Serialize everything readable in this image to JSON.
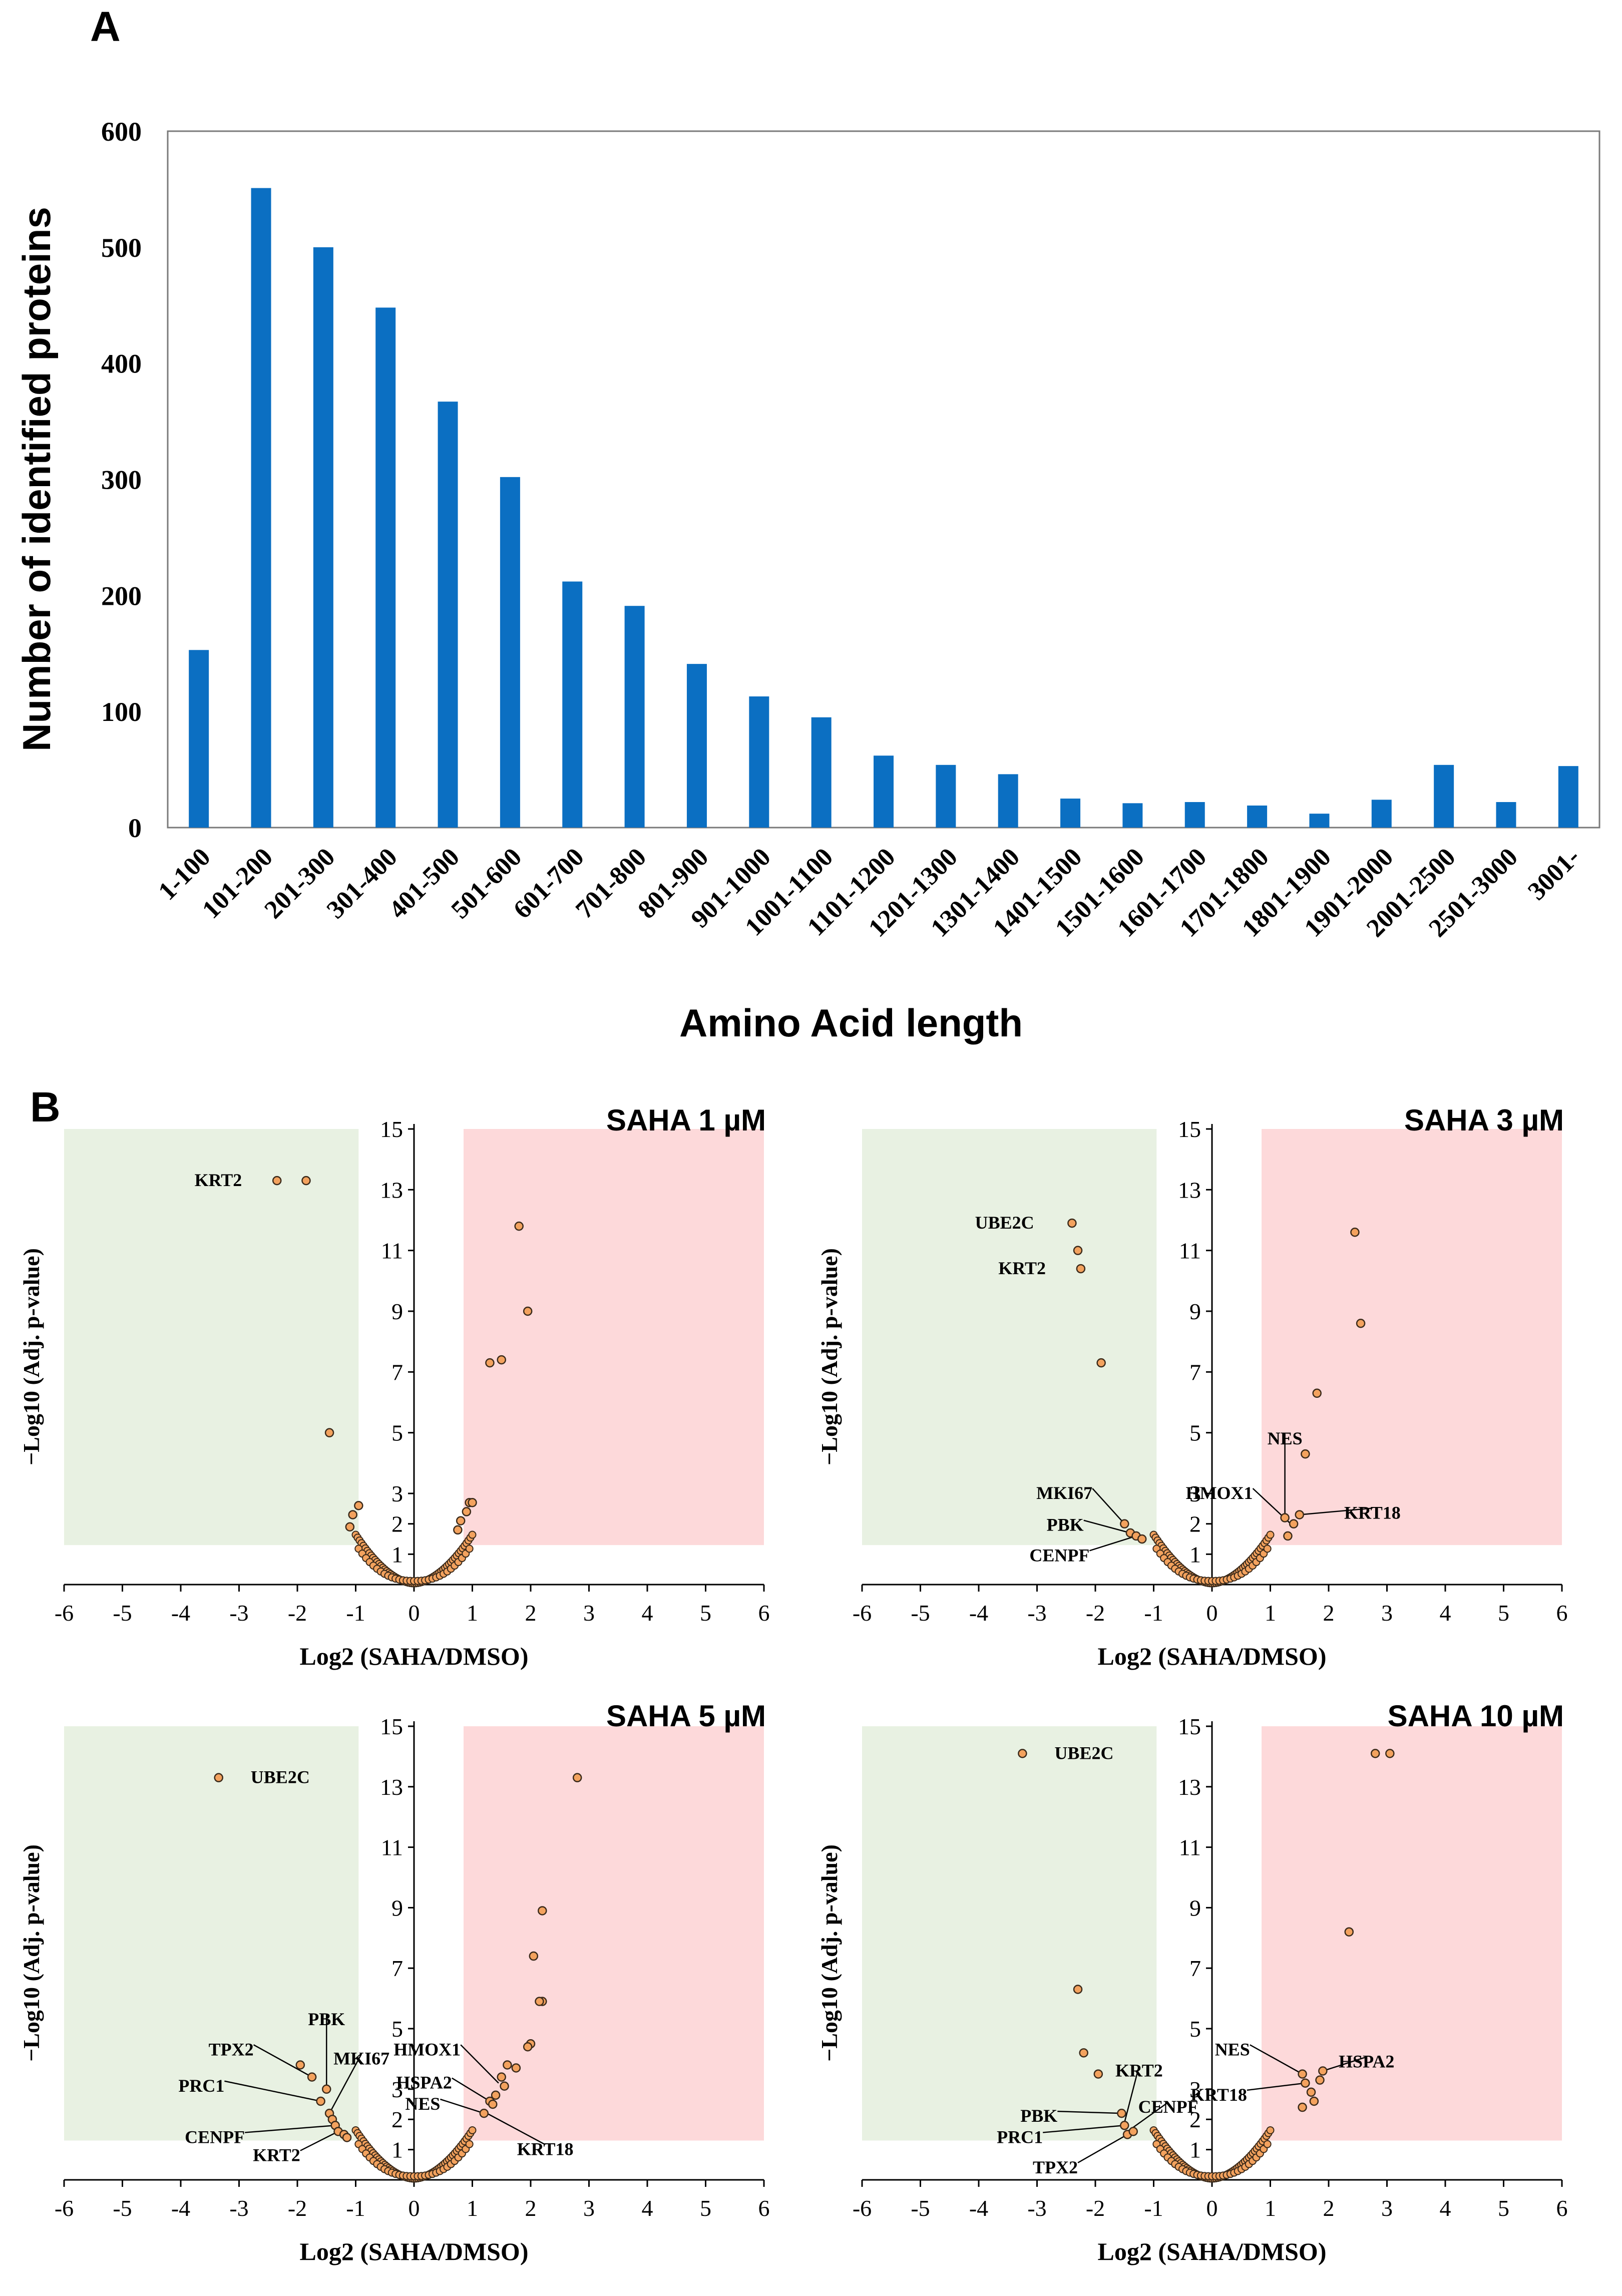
{
  "panel_a": {
    "letter": "A",
    "chart_data": {
      "type": "bar",
      "title": "",
      "xlabel": "Amino Acid length",
      "ylabel": "Number of identified proteins",
      "ylim": [
        0,
        600
      ],
      "yticks": [
        0,
        100,
        200,
        300,
        400,
        500,
        600
      ],
      "color": "#0b6fc2",
      "categories": [
        "1-100",
        "101-200",
        "201-300",
        "301-400",
        "401-500",
        "501-600",
        "601-700",
        "701-800",
        "801-900",
        "901-1000",
        "1001-1100",
        "1101-1200",
        "1201-1300",
        "1301-1400",
        "1401-1500",
        "1501-1600",
        "1601-1700",
        "1701-1800",
        "1801-1900",
        "1901-2000",
        "2001-2500",
        "2501-3000",
        "3001-"
      ],
      "values": [
        153,
        551,
        500,
        448,
        367,
        302,
        212,
        191,
        141,
        113,
        95,
        62,
        54,
        46,
        25,
        21,
        22,
        19,
        12,
        24,
        54,
        22,
        53
      ]
    }
  },
  "panel_b": {
    "letter": "B",
    "xlabel": "Log2 (SAHA/DMSO)",
    "ylabel": "−Log10 (Adj. p-value)",
    "xticks": [
      -6,
      -5,
      -4,
      -3,
      -2,
      -1,
      0,
      1,
      2,
      3,
      4,
      5,
      6
    ],
    "yticks": [
      1,
      2,
      3,
      5,
      7,
      9,
      11,
      13,
      15
    ],
    "down_color": "#e8f1e2",
    "up_color": "#fdd9da",
    "point_color": "#f3a25e",
    "point_edge": "#3b2a1a",
    "chart_data": [
      {
        "type": "scatter",
        "title": "SAHA   1 µM",
        "xlim": [
          -6,
          6
        ],
        "ylim": [
          0,
          15
        ],
        "shaded_down_x": [
          -6,
          -0.95
        ],
        "shaded_up_x": [
          0.85,
          6
        ],
        "shaded_y": [
          1.3,
          15
        ],
        "points": [
          [
            -1.85,
            13.3
          ],
          [
            -2.35,
            13.3
          ],
          [
            1.8,
            11.8
          ],
          [
            1.95,
            9.0
          ],
          [
            1.3,
            7.3
          ],
          [
            1.5,
            7.4
          ],
          [
            -1.45,
            5.0
          ],
          [
            -0.95,
            2.6
          ],
          [
            -1.05,
            2.3
          ],
          [
            -1.1,
            1.9
          ],
          [
            0.95,
            2.7
          ],
          [
            1.0,
            2.7
          ],
          [
            0.9,
            2.4
          ],
          [
            0.8,
            2.1
          ],
          [
            0.75,
            1.8
          ]
        ],
        "labels": [
          {
            "text": "KRT2",
            "x": -2.35,
            "y": 13.3,
            "tx": -2.95,
            "ty": 13.3,
            "leader": false
          }
        ]
      },
      {
        "type": "scatter",
        "title": "SAHA   3 µM",
        "xlim": [
          -6,
          6
        ],
        "ylim": [
          0,
          15
        ],
        "shaded_down_x": [
          -6,
          -0.95
        ],
        "shaded_up_x": [
          0.85,
          6
        ],
        "shaded_y": [
          1.3,
          15
        ],
        "points": [
          [
            -2.4,
            11.9
          ],
          [
            -2.3,
            11.0
          ],
          [
            -2.25,
            10.4
          ],
          [
            -1.9,
            7.3
          ],
          [
            2.45,
            11.6
          ],
          [
            2.55,
            8.6
          ],
          [
            1.8,
            6.3
          ],
          [
            1.6,
            4.3
          ],
          [
            1.25,
            2.2
          ],
          [
            1.5,
            2.3
          ],
          [
            1.4,
            2.0
          ],
          [
            1.3,
            1.6
          ],
          [
            -1.5,
            2.0
          ],
          [
            -1.4,
            1.7
          ],
          [
            -1.3,
            1.6
          ],
          [
            -1.2,
            1.5
          ]
        ],
        "labels": [
          {
            "text": "UBE2C",
            "x": -2.4,
            "y": 11.9,
            "tx": -3.05,
            "ty": 11.9,
            "leader": false
          },
          {
            "text": "KRT2",
            "x": -2.25,
            "y": 10.4,
            "tx": -2.85,
            "ty": 10.4,
            "leader": false
          },
          {
            "text": "MKI67",
            "x": -1.5,
            "y": 2.0,
            "tx": -2.05,
            "ty": 3.0,
            "leader": true
          },
          {
            "text": "PBK",
            "x": -1.4,
            "y": 1.7,
            "tx": -2.2,
            "ty": 1.95,
            "leader": true
          },
          {
            "text": "CENPF",
            "x": -1.3,
            "y": 1.6,
            "tx": -2.1,
            "ty": 0.95,
            "leader": true
          },
          {
            "text": "NES",
            "x": 1.25,
            "y": 2.2,
            "tx": 1.25,
            "ty": 4.8,
            "leader": true
          },
          {
            "text": "HMOX1",
            "x": 1.35,
            "y": 2.0,
            "tx": 0.7,
            "ty": 3.0,
            "leader": true
          },
          {
            "text": "KRT18",
            "x": 1.5,
            "y": 2.3,
            "tx": 2.75,
            "ty": 2.35,
            "leader": true
          }
        ]
      },
      {
        "type": "scatter",
        "title": "SAHA   5 µM",
        "xlim": [
          -6,
          6
        ],
        "ylim": [
          0,
          15
        ],
        "shaded_down_x": [
          -6,
          -0.95
        ],
        "shaded_up_x": [
          0.85,
          6
        ],
        "shaded_y": [
          1.3,
          15
        ],
        "points": [
          [
            -3.35,
            13.3
          ],
          [
            2.8,
            13.3
          ],
          [
            2.2,
            8.9
          ],
          [
            2.05,
            7.4
          ],
          [
            2.2,
            5.9
          ],
          [
            2.15,
            5.9
          ],
          [
            2.0,
            4.5
          ],
          [
            1.95,
            4.4
          ],
          [
            1.6,
            3.8
          ],
          [
            1.75,
            3.7
          ],
          [
            1.5,
            3.4
          ],
          [
            1.55,
            3.1
          ],
          [
            1.4,
            2.8
          ],
          [
            1.3,
            2.6
          ],
          [
            1.35,
            2.5
          ],
          [
            1.2,
            2.2
          ],
          [
            -1.95,
            3.8
          ],
          [
            -1.75,
            3.4
          ],
          [
            -1.6,
            2.6
          ],
          [
            -1.5,
            3.0
          ],
          [
            -1.45,
            2.2
          ],
          [
            -1.4,
            2.0
          ],
          [
            -1.35,
            1.8
          ],
          [
            -1.3,
            1.6
          ],
          [
            -1.2,
            1.5
          ],
          [
            -1.15,
            1.4
          ]
        ],
        "labels": [
          {
            "text": "UBE2C",
            "x": -3.35,
            "y": 13.3,
            "tx": -2.8,
            "ty": 13.3,
            "leader": false
          },
          {
            "text": "PBK",
            "x": -1.5,
            "y": 3.0,
            "tx": -1.5,
            "ty": 5.3,
            "leader": true
          },
          {
            "text": "TPX2",
            "x": -1.75,
            "y": 3.4,
            "tx": -2.75,
            "ty": 4.3,
            "leader": true
          },
          {
            "text": "MKI67",
            "x": -1.45,
            "y": 2.2,
            "tx": -0.9,
            "ty": 4.0,
            "leader": true
          },
          {
            "text": "PRC1",
            "x": -1.6,
            "y": 2.6,
            "tx": -3.25,
            "ty": 3.1,
            "leader": true
          },
          {
            "text": "CENPF",
            "x": -1.35,
            "y": 1.8,
            "tx": -2.9,
            "ty": 1.4,
            "leader": true
          },
          {
            "text": "KRT2",
            "x": -1.3,
            "y": 1.6,
            "tx": -1.95,
            "ty": 0.8,
            "leader": true
          },
          {
            "text": "HMOX1",
            "x": 1.45,
            "y": 3.2,
            "tx": 0.8,
            "ty": 4.3,
            "leader": true
          },
          {
            "text": "HSPA2",
            "x": 1.3,
            "y": 2.6,
            "tx": 0.65,
            "ty": 3.2,
            "leader": true
          },
          {
            "text": "NES",
            "x": 1.2,
            "y": 2.2,
            "tx": 0.45,
            "ty": 2.5,
            "leader": true
          },
          {
            "text": "KRT18",
            "x": 1.25,
            "y": 2.2,
            "tx": 2.25,
            "ty": 1.0,
            "leader": true
          }
        ]
      },
      {
        "type": "scatter",
        "title": "SAHA   10 µM",
        "xlim": [
          -6,
          6
        ],
        "ylim": [
          0,
          15
        ],
        "shaded_down_x": [
          -6,
          -0.95
        ],
        "shaded_up_x": [
          0.85,
          6
        ],
        "shaded_y": [
          1.3,
          15
        ],
        "points": [
          [
            -3.25,
            14.1
          ],
          [
            2.8,
            14.1
          ],
          [
            3.05,
            14.1
          ],
          [
            2.35,
            8.2
          ],
          [
            -2.3,
            6.3
          ],
          [
            -2.2,
            4.2
          ],
          [
            -1.95,
            3.5
          ],
          [
            1.9,
            3.6
          ],
          [
            1.55,
            3.5
          ],
          [
            1.85,
            3.3
          ],
          [
            1.6,
            3.2
          ],
          [
            1.7,
            2.9
          ],
          [
            1.75,
            2.6
          ],
          [
            1.55,
            2.4
          ],
          [
            -1.55,
            2.2
          ],
          [
            -1.5,
            1.8
          ],
          [
            -1.45,
            1.5
          ],
          [
            -1.35,
            1.6
          ]
        ],
        "labels": [
          {
            "text": "UBE2C",
            "x": -3.25,
            "y": 14.1,
            "tx": -2.7,
            "ty": 14.1,
            "leader": false
          },
          {
            "text": "NES",
            "x": 1.55,
            "y": 3.5,
            "tx": 0.65,
            "ty": 4.3,
            "leader": true
          },
          {
            "text": "HSPA2",
            "x": 1.9,
            "y": 3.6,
            "tx": 2.65,
            "ty": 3.9,
            "leader": true
          },
          {
            "text": "KRT18",
            "x": 1.6,
            "y": 3.2,
            "tx": 0.6,
            "ty": 2.8,
            "leader": true
          },
          {
            "text": "KRT2",
            "x": -1.5,
            "y": 1.9,
            "tx": -1.25,
            "ty": 3.6,
            "leader": true
          },
          {
            "text": "CENPF",
            "x": -1.45,
            "y": 1.6,
            "tx": -0.75,
            "ty": 2.4,
            "leader": true
          },
          {
            "text": "PBK",
            "x": -1.55,
            "y": 2.2,
            "tx": -2.65,
            "ty": 2.1,
            "leader": true
          },
          {
            "text": "PRC1",
            "x": -1.5,
            "y": 1.8,
            "tx": -2.9,
            "ty": 1.4,
            "leader": true
          },
          {
            "text": "TPX2",
            "x": -1.45,
            "y": 1.5,
            "tx": -2.3,
            "ty": 0.4,
            "leader": true
          }
        ]
      }
    ]
  }
}
